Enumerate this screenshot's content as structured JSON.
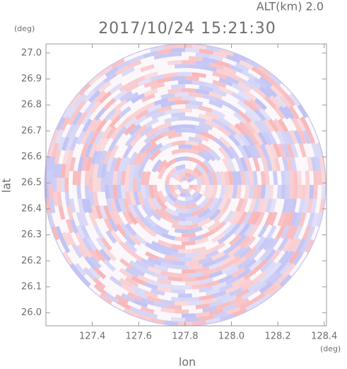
{
  "chart_data": {
    "type": "radar-ppi",
    "title": "2017/10/24 15:21:30",
    "annotation": "ALT(km) 2.0",
    "x_label": "lon",
    "x_unit": "(deg)",
    "y_label": "lat",
    "y_unit": "(deg)",
    "xlim": [
      127.2,
      128.41
    ],
    "ylim": [
      25.95,
      27.035
    ],
    "xticks": [
      127.4,
      127.6,
      127.8,
      {
        "value": 128,
        "label": "128.0"
      },
      128.2,
      128.4
    ],
    "yticks": [
      {
        "value": 26,
        "label": "26.0"
      },
      26.1,
      26.2,
      26.3,
      26.4,
      26.5,
      26.6,
      26.7,
      26.8,
      26.9,
      {
        "value": 27,
        "label": "27.0"
      }
    ]
  }
}
